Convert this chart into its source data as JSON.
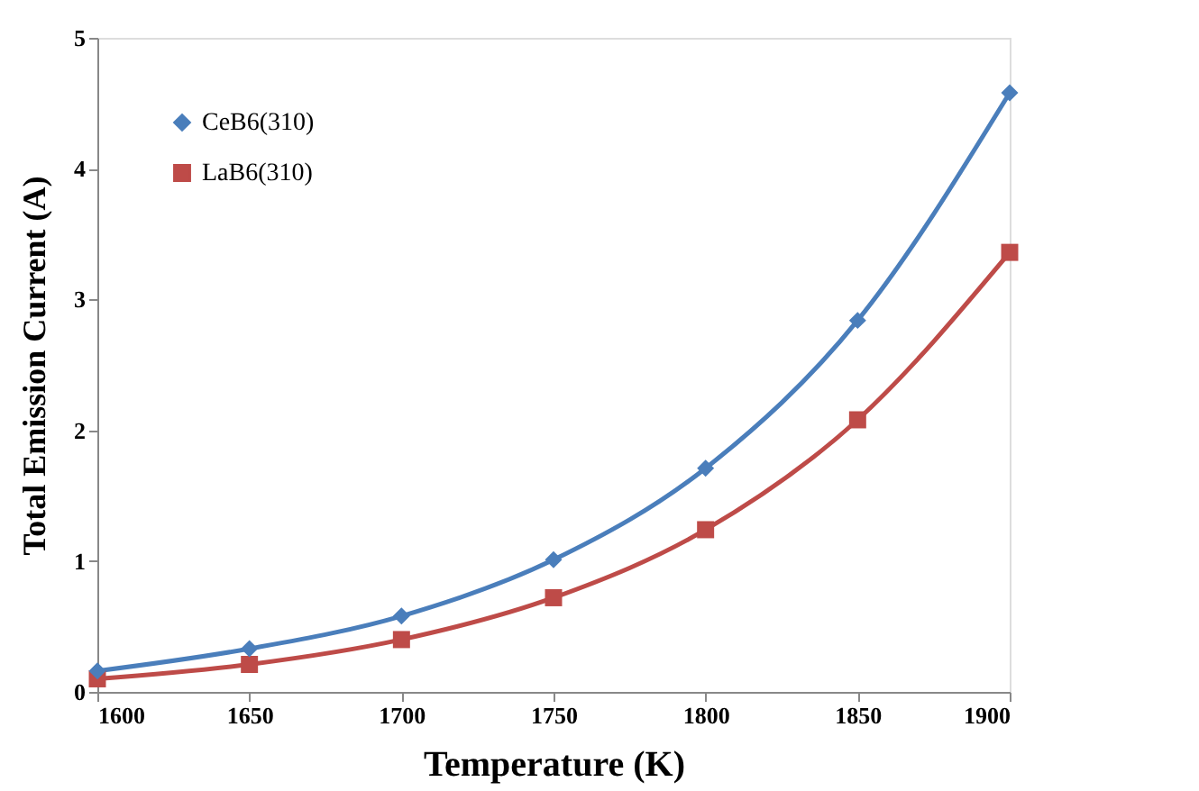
{
  "chart_data": {
    "type": "line",
    "xlabel": "Temperature  (K)",
    "ylabel": "Total Emission Current  (A)",
    "x": [
      1600,
      1650,
      1700,
      1750,
      1800,
      1850,
      1900
    ],
    "series": [
      {
        "name": "CeB6(310)",
        "color": "#4a7ebb",
        "marker": "diamond",
        "values": [
          0.16,
          0.33,
          0.58,
          1.01,
          1.71,
          2.84,
          4.58
        ]
      },
      {
        "name": "LaB6(310)",
        "color": "#be4b48",
        "marker": "square",
        "values": [
          0.1,
          0.21,
          0.4,
          0.72,
          1.24,
          2.08,
          3.36
        ]
      }
    ],
    "xlim": [
      1600,
      1900
    ],
    "xticks": [
      1600,
      1650,
      1700,
      1750,
      1800,
      1850,
      1900
    ],
    "ylim": [
      0,
      5
    ],
    "yticks": [
      0,
      1,
      2,
      3,
      4,
      5
    ],
    "grid": false,
    "legend": "top left",
    "line_style": "solid"
  }
}
